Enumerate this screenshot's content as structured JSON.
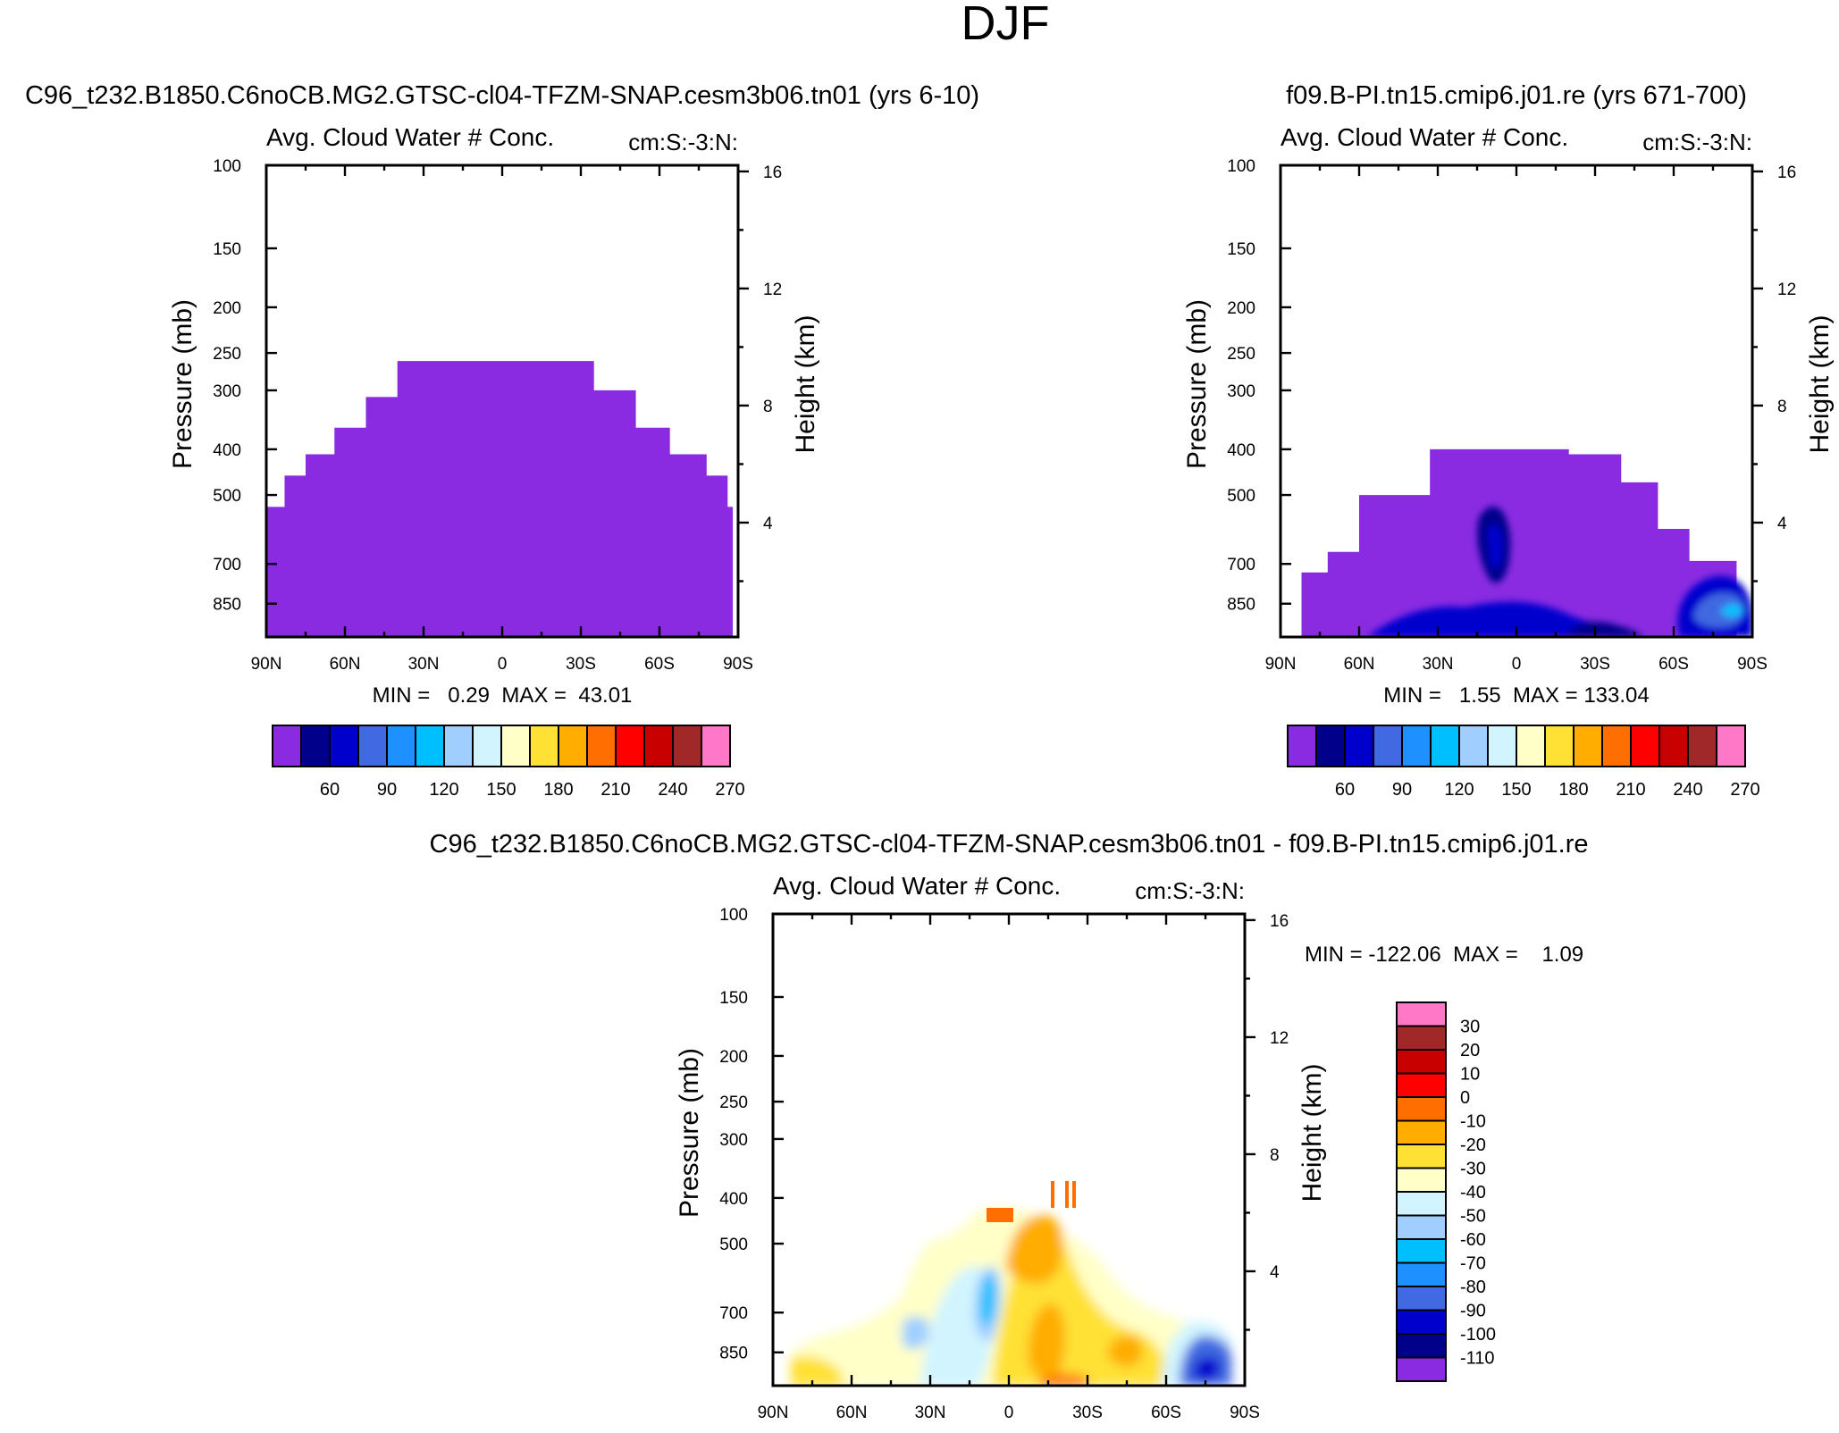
{
  "page_title": "DJF",
  "colors": {
    "background": "#ffffff",
    "axis": "#000000",
    "top_palette": [
      "#8a2be2",
      "#00008b",
      "#0000cd",
      "#4169e1",
      "#1e90ff",
      "#00bfff",
      "#a0cfff",
      "#d1f4ff",
      "#ffffc8",
      "#ffe135",
      "#ffad00",
      "#ff6e00",
      "#ff0000",
      "#c80000",
      "#a02828",
      "#ff78c8"
    ],
    "diff_palette_bottom_to_top": [
      "#8a2be2",
      "#00008b",
      "#0000cd",
      "#4169e1",
      "#1e90ff",
      "#00bfff",
      "#a0cfff",
      "#d1f4ff",
      "#ffffc8",
      "#ffe135",
      "#ffad00",
      "#ff6e00",
      "#ff0000",
      "#c80000",
      "#a02828",
      "#ff78c8"
    ]
  },
  "chart_data": [
    {
      "id": "left",
      "type": "heatmap",
      "title": "C96_t232.B1850.C6noCB.MG2.GTSC-cl04-TFZM-SNAP.cesm3b06.tn01 (yrs 6-10)",
      "left_string": "Avg. Cloud Water # Conc.",
      "right_string": "cm:S:-3:N:",
      "ylabel": "Pressure (mb)",
      "ylabel_right": "Height (km)",
      "x_ticks": [
        "90N",
        "60N",
        "30N",
        "0",
        "30S",
        "60S",
        "90S"
      ],
      "x_range": [
        90,
        -90
      ],
      "y_ticks": [
        100,
        150,
        200,
        250,
        300,
        400,
        500,
        700,
        850
      ],
      "y_range": [
        100,
        1000
      ],
      "height_ticks": [
        16,
        12,
        8,
        4
      ],
      "min_max": "MIN =   0.29  MAX =  43.01",
      "colorbar_labels": [
        "60",
        "90",
        "120",
        "150",
        "180",
        "210",
        "240",
        "270"
      ],
      "levels": [
        45,
        60,
        75,
        90,
        105,
        120,
        135,
        150,
        165,
        180,
        195,
        210,
        225,
        240,
        255,
        270
      ],
      "field_description": "value below 45 (first color) everywhere the field is defined",
      "envelope": [
        {
          "lat": 90,
          "p_top": 590
        },
        {
          "lat": 83,
          "p_top": 530
        },
        {
          "lat": 75,
          "p_top": 455
        },
        {
          "lat": 64,
          "p_top": 410
        },
        {
          "lat": 52,
          "p_top": 360
        },
        {
          "lat": 40,
          "p_top": 310
        },
        {
          "lat": 33,
          "p_top": 260
        },
        {
          "lat": -35,
          "p_top": 300
        },
        {
          "lat": -51,
          "p_top": 360
        },
        {
          "lat": -64,
          "p_top": 410
        },
        {
          "lat": -78,
          "p_top": 455
        },
        {
          "lat": -86,
          "p_top": 530
        },
        {
          "lat": -88,
          "p_top": 590
        }
      ]
    },
    {
      "id": "right",
      "type": "heatmap",
      "title": "f09.B-PI.tn15.cmip6.j01.re (yrs 671-700)",
      "left_string": "Avg. Cloud Water # Conc.",
      "right_string": "cm:S:-3:N:",
      "ylabel": "Pressure (mb)",
      "ylabel_right": "Height (km)",
      "x_ticks": [
        "90N",
        "60N",
        "30N",
        "0",
        "30S",
        "60S",
        "90S"
      ],
      "x_range": [
        90,
        -90
      ],
      "y_ticks": [
        100,
        150,
        200,
        250,
        300,
        400,
        500,
        700,
        850
      ],
      "y_range": [
        100,
        1000
      ],
      "height_ticks": [
        16,
        12,
        8,
        4
      ],
      "min_max": "MIN =   1.55  MAX = 133.04",
      "colorbar_labels": [
        "60",
        "90",
        "120",
        "150",
        "180",
        "210",
        "240",
        "270"
      ],
      "levels": [
        45,
        60,
        75,
        90,
        105,
        120,
        135,
        150,
        165,
        180,
        195,
        210,
        225,
        240,
        255,
        270
      ],
      "field_description": "mostly below 45, with 45-105 maxima near 15N 500-700 mb, near-surface tropics and 65-80S",
      "envelope": [
        {
          "lat": 82,
          "p_top": 820
        },
        {
          "lat": 72,
          "p_top": 730
        },
        {
          "lat": 60,
          "p_top": 660
        },
        {
          "lat": 33,
          "p_top": 500
        },
        {
          "lat": 10,
          "p_top": 400
        },
        {
          "lat": -20,
          "p_top": 410
        },
        {
          "lat": -40,
          "p_top": 470
        },
        {
          "lat": -54,
          "p_top": 590
        },
        {
          "lat": -66,
          "p_top": 690
        },
        {
          "lat": -84,
          "p_top": 770
        }
      ]
    },
    {
      "id": "diff",
      "type": "heatmap",
      "title": "C96_t232.B1850.C6noCB.MG2.GTSC-cl04-TFZM-SNAP.cesm3b06.tn01 - f09.B-PI.tn15.cmip6.j01.re",
      "left_string": "Avg. Cloud Water # Conc.",
      "right_string": "cm:S:-3:N:",
      "ylabel": "Pressure (mb)",
      "ylabel_right": "Height (km)",
      "x_ticks": [
        "90N",
        "60N",
        "30N",
        "0",
        "30S",
        "60S",
        "90S"
      ],
      "x_range": [
        90,
        -90
      ],
      "y_ticks": [
        100,
        150,
        200,
        250,
        300,
        400,
        500,
        700,
        850
      ],
      "y_range": [
        100,
        1000
      ],
      "height_ticks": [
        16,
        12,
        8,
        4
      ],
      "min_max": "MIN = -122.06  MAX =    1.09",
      "colorbar_labels": [
        "30",
        "20",
        "10",
        "0",
        "-10",
        "-20",
        "-30",
        "-40",
        "-50",
        "-60",
        "-70",
        "-80",
        "-90",
        "-100",
        "-110"
      ],
      "levels": [
        -110,
        -100,
        -90,
        -80,
        -70,
        -60,
        -50,
        -40,
        -30,
        -20,
        -10,
        0,
        10,
        20,
        30
      ],
      "field_description": "mostly -40 to -10; minimum about -70 near 10N 500-600 mb and about -100 near 75S surface; -10 to 0 near 350 mb at 0-30S"
    }
  ]
}
